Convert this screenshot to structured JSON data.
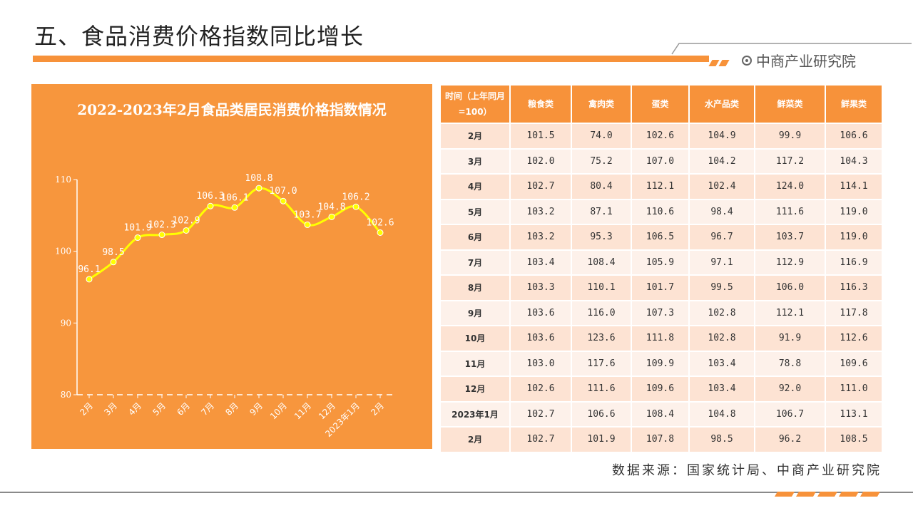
{
  "page": {
    "title": "五、食品消费价格指数同比增长",
    "brand": "中商产业研究院",
    "source": "数据来源：国家统计局、中商产业研究院"
  },
  "colors": {
    "accent": "#f7923a",
    "panel": "#f7963d",
    "line": "#ffff00"
  },
  "chart_data": {
    "type": "line",
    "title": "2022-2023年2月食品类居民消费价格指数情况",
    "categories": [
      "2月",
      "3月",
      "4月",
      "5月",
      "6月",
      "7月",
      "8月",
      "9月",
      "10月",
      "11月",
      "12月",
      "2023年1月",
      "2月"
    ],
    "series": [
      {
        "values": [
          96.1,
          98.5,
          101.9,
          102.3,
          102.9,
          106.3,
          106.1,
          108.8,
          107.0,
          103.7,
          104.8,
          106.2,
          102.6
        ]
      }
    ],
    "ylim": [
      80,
      110
    ],
    "yticks": [
      80,
      90,
      100,
      110
    ],
    "grid": false
  },
  "table": {
    "headers": [
      "时间（上年同月=100）",
      "粮食类",
      "禽肉类",
      "蛋类",
      "水产品类",
      "鲜菜类",
      "鲜果类"
    ],
    "rows": [
      [
        "2月",
        "101.5",
        "74.0",
        "102.6",
        "104.9",
        "99.9",
        "106.6"
      ],
      [
        "3月",
        "102.0",
        "75.2",
        "107.0",
        "104.2",
        "117.2",
        "104.3"
      ],
      [
        "4月",
        "102.7",
        "80.4",
        "112.1",
        "102.4",
        "124.0",
        "114.1"
      ],
      [
        "5月",
        "103.2",
        "87.1",
        "110.6",
        "98.4",
        "111.6",
        "119.0"
      ],
      [
        "6月",
        "103.2",
        "95.3",
        "106.5",
        "96.7",
        "103.7",
        "119.0"
      ],
      [
        "7月",
        "103.4",
        "108.4",
        "105.9",
        "97.1",
        "112.9",
        "116.9"
      ],
      [
        "8月",
        "103.3",
        "110.1",
        "101.7",
        "99.5",
        "106.0",
        "116.3"
      ],
      [
        "9月",
        "103.6",
        "116.0",
        "107.3",
        "102.8",
        "112.1",
        "117.8"
      ],
      [
        "10月",
        "103.6",
        "123.6",
        "111.8",
        "102.8",
        "91.9",
        "112.6"
      ],
      [
        "11月",
        "103.0",
        "117.6",
        "109.9",
        "103.4",
        "78.8",
        "109.6"
      ],
      [
        "12月",
        "102.6",
        "111.6",
        "109.6",
        "103.4",
        "92.0",
        "111.0"
      ],
      [
        "2023年1月",
        "102.7",
        "106.6",
        "108.4",
        "104.8",
        "106.7",
        "113.1"
      ],
      [
        "2月",
        "102.7",
        "101.9",
        "107.8",
        "98.5",
        "96.2",
        "108.5"
      ]
    ]
  }
}
